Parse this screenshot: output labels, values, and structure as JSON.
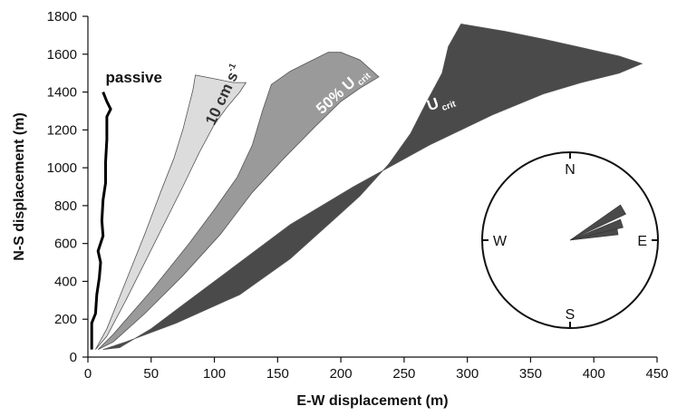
{
  "chart_data": {
    "type": "area",
    "xlabel": "E-W displacement (m)",
    "ylabel": "N-S displacement (m)",
    "xlim": [
      0,
      450
    ],
    "ylim": [
      0,
      1800
    ],
    "xticks": [
      0,
      50,
      100,
      150,
      200,
      250,
      300,
      350,
      400,
      450
    ],
    "yticks": [
      0,
      200,
      400,
      600,
      800,
      1000,
      1200,
      1400,
      1600,
      1800
    ],
    "grid": false,
    "legend": "none",
    "series": [
      {
        "name": "U",
        "subscript": "crit",
        "color": "#4a4a4a",
        "label_color": "#ffffff",
        "label_pos": [
          270,
          1300
        ],
        "label_rot": -20,
        "polygon": [
          [
            12,
            40
          ],
          [
            30,
            80
          ],
          [
            70,
            180
          ],
          [
            120,
            330
          ],
          [
            160,
            520
          ],
          [
            190,
            700
          ],
          [
            215,
            850
          ],
          [
            238,
            1020
          ],
          [
            255,
            1180
          ],
          [
            268,
            1350
          ],
          [
            280,
            1500
          ],
          [
            285,
            1640
          ],
          [
            290,
            1700
          ],
          [
            295,
            1760
          ],
          [
            330,
            1720
          ],
          [
            360,
            1680
          ],
          [
            400,
            1620
          ],
          [
            420,
            1590
          ],
          [
            438,
            1550
          ],
          [
            420,
            1500
          ],
          [
            390,
            1450
          ],
          [
            360,
            1390
          ],
          [
            320,
            1280
          ],
          [
            270,
            1120
          ],
          [
            210,
            900
          ],
          [
            160,
            700
          ],
          [
            120,
            500
          ],
          [
            80,
            300
          ],
          [
            50,
            150
          ],
          [
            25,
            50
          ]
        ]
      },
      {
        "name": "50% U",
        "subscript": "crit",
        "color": "#9a9a9a",
        "label_color": "#ffffff",
        "label_pos": [
          185,
          1280
        ],
        "label_rot": -42,
        "polygon": [
          [
            8,
            40
          ],
          [
            20,
            120
          ],
          [
            50,
            350
          ],
          [
            80,
            600
          ],
          [
            100,
            780
          ],
          [
            118,
            950
          ],
          [
            130,
            1120
          ],
          [
            138,
            1300
          ],
          [
            145,
            1440
          ],
          [
            160,
            1510
          ],
          [
            175,
            1560
          ],
          [
            190,
            1610
          ],
          [
            200,
            1610
          ],
          [
            215,
            1570
          ],
          [
            230,
            1480
          ],
          [
            215,
            1420
          ],
          [
            200,
            1350
          ],
          [
            180,
            1220
          ],
          [
            155,
            1050
          ],
          [
            130,
            870
          ],
          [
            105,
            650
          ],
          [
            75,
            430
          ],
          [
            45,
            230
          ],
          [
            20,
            80
          ]
        ]
      },
      {
        "name": "10 cm s",
        "superscript": "-1",
        "color": "#dcdcdc",
        "label_color": "#333333",
        "label_pos": [
          100,
          1220
        ],
        "label_rot": -65,
        "polygon": [
          [
            6,
            40
          ],
          [
            15,
            150
          ],
          [
            30,
            400
          ],
          [
            45,
            650
          ],
          [
            58,
            880
          ],
          [
            68,
            1050
          ],
          [
            75,
            1200
          ],
          [
            80,
            1330
          ],
          [
            83,
            1410
          ],
          [
            85,
            1490
          ],
          [
            100,
            1470
          ],
          [
            115,
            1450
          ],
          [
            125,
            1450
          ],
          [
            120,
            1400
          ],
          [
            110,
            1320
          ],
          [
            100,
            1230
          ],
          [
            88,
            1080
          ],
          [
            75,
            900
          ],
          [
            60,
            700
          ],
          [
            45,
            500
          ],
          [
            30,
            300
          ],
          [
            15,
            110
          ]
        ]
      },
      {
        "name": "passive",
        "color": "#000000",
        "label_color": "#111111",
        "label_pos": [
          14,
          1450
        ],
        "label_rot": 0,
        "polyline": [
          [
            3,
            40
          ],
          [
            3,
            180
          ],
          [
            6,
            230
          ],
          [
            7,
            330
          ],
          [
            9,
            420
          ],
          [
            10,
            500
          ],
          [
            8,
            560
          ],
          [
            12,
            640
          ],
          [
            11,
            720
          ],
          [
            12,
            830
          ],
          [
            14,
            920
          ],
          [
            14,
            1030
          ],
          [
            15,
            1150
          ],
          [
            15,
            1270
          ],
          [
            18,
            1310
          ],
          [
            15,
            1350
          ],
          [
            12,
            1400
          ]
        ]
      }
    ],
    "inset": {
      "type": "rose",
      "labels": {
        "n": "N",
        "e": "E",
        "s": "S",
        "w": "W"
      },
      "petals": [
        {
          "angle_deg": 60,
          "length": 0.7,
          "width_deg": 10
        },
        {
          "angle_deg": 72,
          "length": 0.62,
          "width_deg": 9
        },
        {
          "angle_deg": 80,
          "length": 0.55,
          "width_deg": 7
        }
      ],
      "petal_color": "#4a4a4a"
    }
  }
}
